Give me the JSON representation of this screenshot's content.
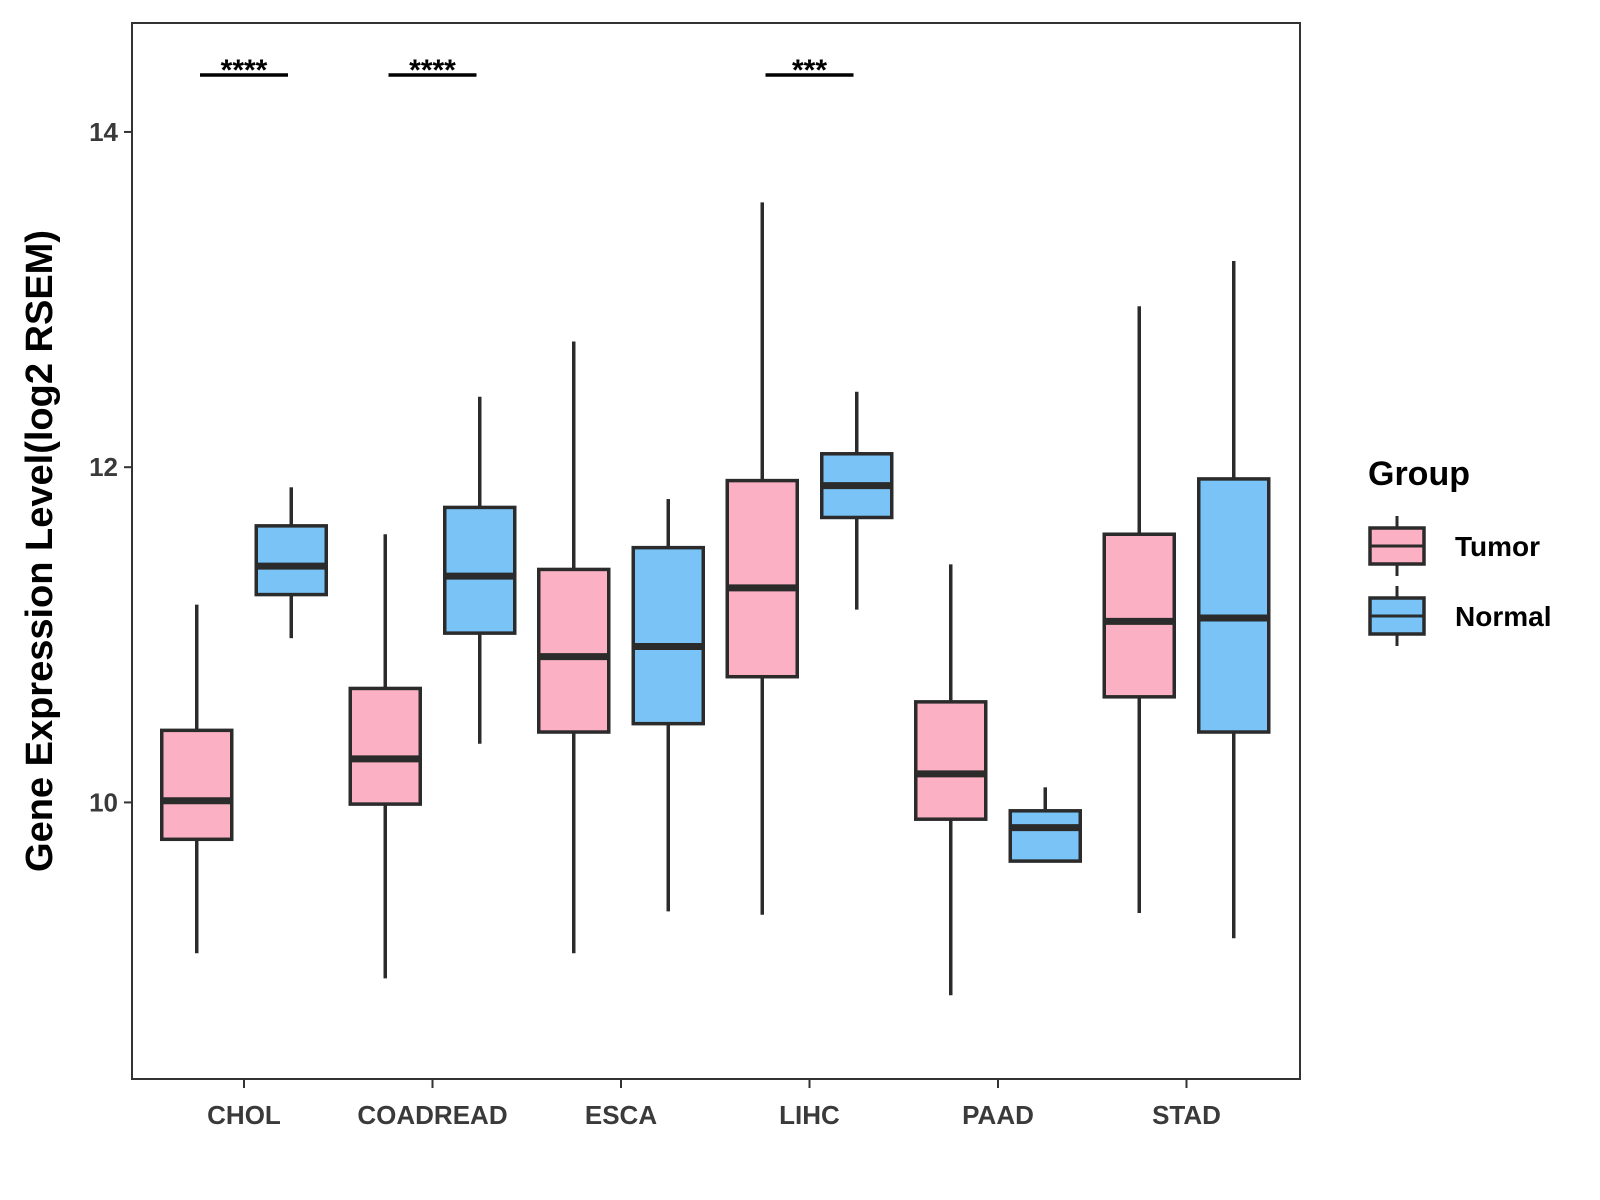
{
  "chart_data": {
    "type": "boxplot",
    "title": "",
    "xlabel": "",
    "ylabel": "Gene Expression Level(log2 RSEM)",
    "ylim": [
      8.35,
      14.65
    ],
    "yticks": [
      10,
      12,
      14
    ],
    "grid": false,
    "legend_position": "right",
    "legend_title": "Group",
    "categories": [
      "CHOL",
      "COADREAD",
      "ESCA",
      "LIHC",
      "PAAD",
      "STAD"
    ],
    "series": [
      {
        "name": "Tumor",
        "color": "#FBB1C3",
        "boxes": [
          {
            "whisker_low": 9.1,
            "q1": 9.78,
            "median": 10.01,
            "q3": 10.43,
            "whisker_high": 11.18
          },
          {
            "whisker_low": 8.95,
            "q1": 9.99,
            "median": 10.26,
            "q3": 10.68,
            "whisker_high": 11.6
          },
          {
            "whisker_low": 9.1,
            "q1": 10.42,
            "median": 10.87,
            "q3": 11.39,
            "whisker_high": 12.75
          },
          {
            "whisker_low": 9.33,
            "q1": 10.75,
            "median": 11.28,
            "q3": 11.92,
            "whisker_high": 13.58
          },
          {
            "whisker_low": 8.85,
            "q1": 9.9,
            "median": 10.17,
            "q3": 10.6,
            "whisker_high": 11.42
          },
          {
            "whisker_low": 9.34,
            "q1": 10.63,
            "median": 11.08,
            "q3": 11.6,
            "whisker_high": 12.96
          }
        ]
      },
      {
        "name": "Normal",
        "color": "#7AC3F7",
        "boxes": [
          {
            "whisker_low": 10.98,
            "q1": 11.24,
            "median": 11.41,
            "q3": 11.65,
            "whisker_high": 11.88
          },
          {
            "whisker_low": 10.35,
            "q1": 11.01,
            "median": 11.35,
            "q3": 11.76,
            "whisker_high": 12.42
          },
          {
            "whisker_low": 9.35,
            "q1": 10.47,
            "median": 10.93,
            "q3": 11.52,
            "whisker_high": 11.81
          },
          {
            "whisker_low": 11.15,
            "q1": 11.7,
            "median": 11.89,
            "q3": 12.08,
            "whisker_high": 12.45
          },
          {
            "whisker_low": 9.65,
            "q1": 9.65,
            "median": 9.85,
            "q3": 9.95,
            "whisker_high": 10.09
          },
          {
            "whisker_low": 9.19,
            "q1": 10.42,
            "median": 11.1,
            "q3": 11.93,
            "whisker_high": 13.23
          }
        ]
      }
    ],
    "significance": [
      {
        "category": "CHOL",
        "label": "****"
      },
      {
        "category": "COADREAD",
        "label": "****"
      },
      {
        "category": "ESCA",
        "label": ""
      },
      {
        "category": "LIHC",
        "label": "***"
      },
      {
        "category": "PAAD",
        "label": ""
      },
      {
        "category": "STAD",
        "label": ""
      }
    ]
  }
}
